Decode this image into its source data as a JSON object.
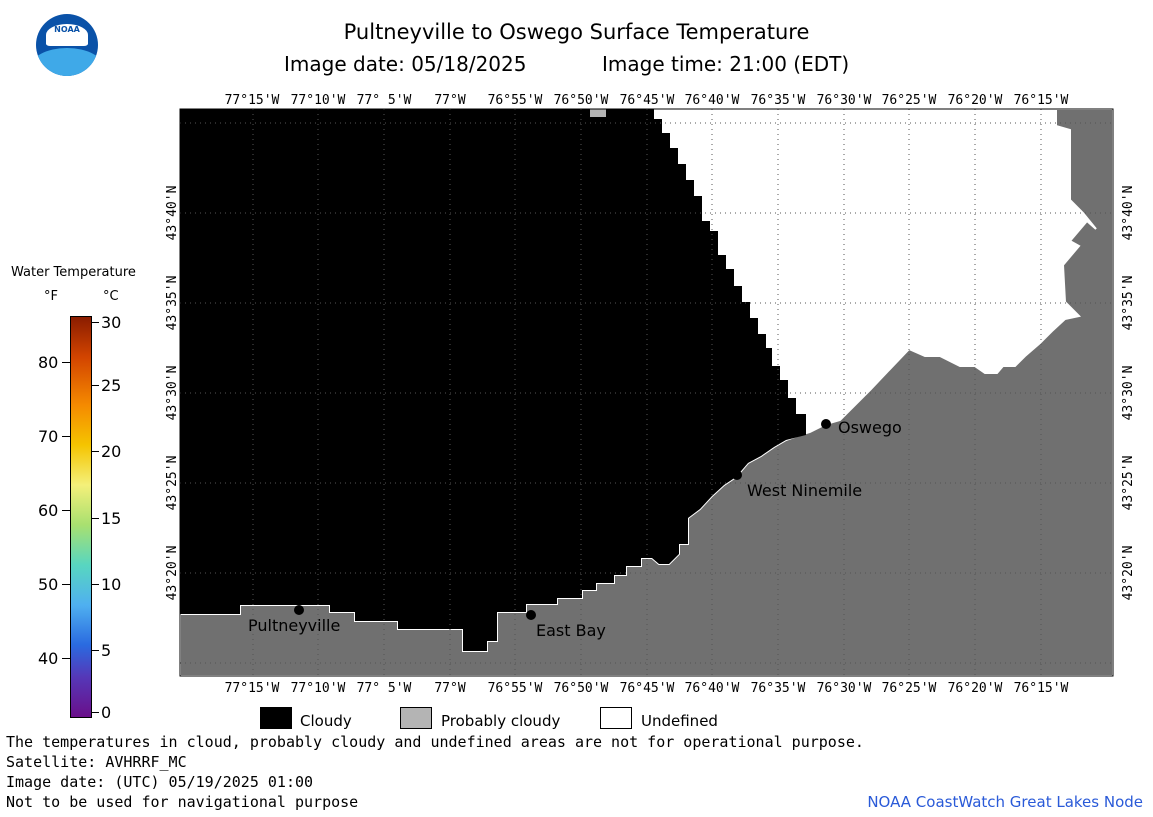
{
  "header": {
    "title": "Pultneyville to Oswego Surface Temperature",
    "image_date_label": "Image date: 05/18/2025",
    "image_time_label": "Image time: 21:00 (EDT)"
  },
  "logo": {
    "text": "NOAA"
  },
  "colorbar": {
    "title": "Water Temperature",
    "unit_f": "°F",
    "unit_c": "°C",
    "f_ticks": [
      "80",
      "70",
      "60",
      "50",
      "40"
    ],
    "c_ticks": [
      "30",
      "25",
      "20",
      "15",
      "10",
      "5",
      "0"
    ]
  },
  "map": {
    "lon_labels": [
      "77°15'W",
      "77°10'W",
      "77° 5'W",
      "77°W",
      "76°55'W",
      "76°50'W",
      "76°45'W",
      "76°40'W",
      "76°35'W",
      "76°30'W",
      "76°25'W",
      "76°20'W",
      "76°15'W"
    ],
    "lat_labels": [
      "43°40'N",
      "43°35'N",
      "43°30'N",
      "43°25'N",
      "43°20'N"
    ],
    "places": [
      {
        "name": "Pultneyville"
      },
      {
        "name": "East Bay"
      },
      {
        "name": "West Ninemile"
      },
      {
        "name": "Oswego"
      }
    ],
    "colors": {
      "cloudy": "#000000",
      "probably_cloudy": "#b4b4b4",
      "undefined": "#ffffff",
      "land": "#707070"
    }
  },
  "legend": {
    "cloudy": "Cloudy",
    "probably_cloudy": "Probably cloudy",
    "undefined": "Undefined"
  },
  "notes": {
    "line1": "The temperatures in cloud, probably cloudy and undefined areas are not for operational purpose.",
    "line2": "Satellite: AVHRRF_MC",
    "line3": "Image date: (UTC) 05/19/2025  01:00",
    "line4": "Not to be used for navigational purpose"
  },
  "credit": "NOAA CoastWatch Great Lakes Node"
}
